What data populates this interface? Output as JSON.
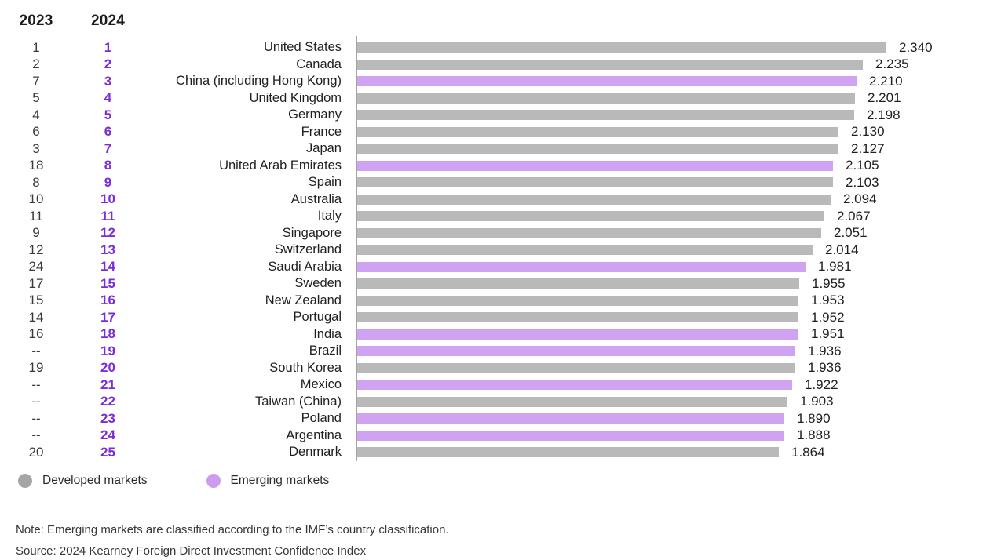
{
  "header": {
    "col_2023": "2023",
    "col_2024": "2024"
  },
  "chart_data": {
    "type": "bar",
    "orientation": "horizontal",
    "value_axis_range": [
      0,
      2.34
    ],
    "columns": [
      "2023 rank",
      "2024 rank",
      "country",
      "score"
    ],
    "rows": [
      {
        "rank_2023": "1",
        "rank_2024": "1",
        "country": "United States",
        "value": 2.34,
        "value_label": "2.340",
        "market": "developed"
      },
      {
        "rank_2023": "2",
        "rank_2024": "2",
        "country": "Canada",
        "value": 2.235,
        "value_label": "2.235",
        "market": "developed"
      },
      {
        "rank_2023": "7",
        "rank_2024": "3",
        "country": "China (including Hong Kong)",
        "value": 2.21,
        "value_label": "2.210",
        "market": "emerging"
      },
      {
        "rank_2023": "5",
        "rank_2024": "4",
        "country": "United Kingdom",
        "value": 2.201,
        "value_label": "2.201",
        "market": "developed"
      },
      {
        "rank_2023": "4",
        "rank_2024": "5",
        "country": "Germany",
        "value": 2.198,
        "value_label": "2.198",
        "market": "developed"
      },
      {
        "rank_2023": "6",
        "rank_2024": "6",
        "country": "France",
        "value": 2.13,
        "value_label": "2.130",
        "market": "developed"
      },
      {
        "rank_2023": "3",
        "rank_2024": "7",
        "country": "Japan",
        "value": 2.127,
        "value_label": "2.127",
        "market": "developed"
      },
      {
        "rank_2023": "18",
        "rank_2024": "8",
        "country": "United Arab Emirates",
        "value": 2.105,
        "value_label": "2.105",
        "market": "emerging"
      },
      {
        "rank_2023": "8",
        "rank_2024": "9",
        "country": "Spain",
        "value": 2.103,
        "value_label": "2.103",
        "market": "developed"
      },
      {
        "rank_2023": "10",
        "rank_2024": "10",
        "country": "Australia",
        "value": 2.094,
        "value_label": "2.094",
        "market": "developed"
      },
      {
        "rank_2023": "11",
        "rank_2024": "11",
        "country": "Italy",
        "value": 2.067,
        "value_label": "2.067",
        "market": "developed"
      },
      {
        "rank_2023": "9",
        "rank_2024": "12",
        "country": "Singapore",
        "value": 2.051,
        "value_label": "2.051",
        "market": "developed"
      },
      {
        "rank_2023": "12",
        "rank_2024": "13",
        "country": "Switzerland",
        "value": 2.014,
        "value_label": "2.014",
        "market": "developed"
      },
      {
        "rank_2023": "24",
        "rank_2024": "14",
        "country": "Saudi Arabia",
        "value": 1.981,
        "value_label": "1.981",
        "market": "emerging"
      },
      {
        "rank_2023": "17",
        "rank_2024": "15",
        "country": "Sweden",
        "value": 1.955,
        "value_label": "1.955",
        "market": "developed"
      },
      {
        "rank_2023": "15",
        "rank_2024": "16",
        "country": "New Zealand",
        "value": 1.953,
        "value_label": "1.953",
        "market": "developed"
      },
      {
        "rank_2023": "14",
        "rank_2024": "17",
        "country": "Portugal",
        "value": 1.952,
        "value_label": "1.952",
        "market": "developed"
      },
      {
        "rank_2023": "16",
        "rank_2024": "18",
        "country": "India",
        "value": 1.951,
        "value_label": "1.951",
        "market": "emerging"
      },
      {
        "rank_2023": "--",
        "rank_2024": "19",
        "country": "Brazil",
        "value": 1.936,
        "value_label": "1.936",
        "market": "emerging"
      },
      {
        "rank_2023": "19",
        "rank_2024": "20",
        "country": "South Korea",
        "value": 1.936,
        "value_label": "1.936",
        "market": "developed"
      },
      {
        "rank_2023": "--",
        "rank_2024": "21",
        "country": "Mexico",
        "value": 1.922,
        "value_label": "1.922",
        "market": "emerging"
      },
      {
        "rank_2023": "--",
        "rank_2024": "22",
        "country": "Taiwan (China)",
        "value": 1.903,
        "value_label": "1.903",
        "market": "developed"
      },
      {
        "rank_2023": "--",
        "rank_2024": "23",
        "country": "Poland",
        "value": 1.89,
        "value_label": "1.890",
        "market": "emerging"
      },
      {
        "rank_2023": "--",
        "rank_2024": "24",
        "country": "Argentina",
        "value": 1.888,
        "value_label": "1.888",
        "market": "emerging"
      },
      {
        "rank_2023": "20",
        "rank_2024": "25",
        "country": "Denmark",
        "value": 1.864,
        "value_label": "1.864",
        "market": "developed"
      }
    ],
    "legend": [
      {
        "label": "Developed markets",
        "color": "#a5a5a5"
      },
      {
        "label": "Emerging markets",
        "color": "#cc9cf1"
      }
    ],
    "bar_colors": {
      "developed": "#b9b9b9",
      "emerging": "#cfa3f1"
    },
    "rank_accent_color": "#7c2bd9",
    "axis_line_color": "#a4a4a4"
  },
  "footer": {
    "note": "Note: Emerging markets are classified according to the IMF’s country classification.",
    "source": "Source: 2024 Kearney Foreign Direct Investment Confidence Index"
  }
}
